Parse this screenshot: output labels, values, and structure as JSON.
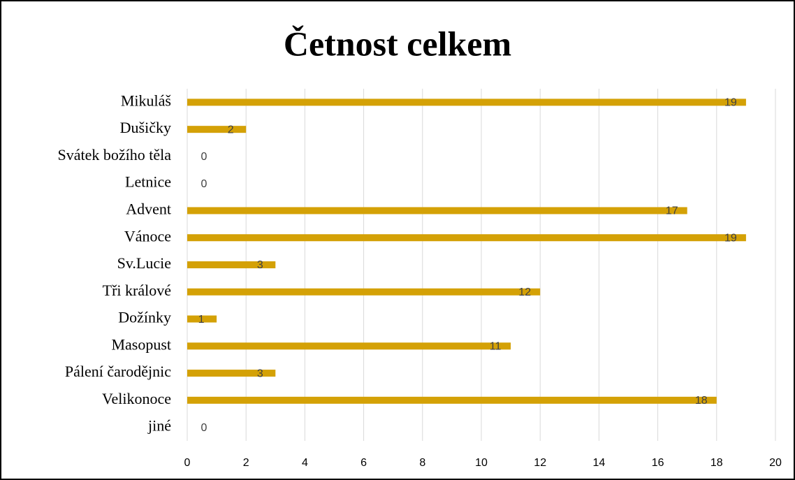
{
  "chart_data": {
    "type": "barh",
    "title": "Četnost celkem",
    "categories": [
      "Mikuláš",
      "Dušičky",
      "Svátek božího těla",
      "Letnice",
      "Advent",
      "Vánoce",
      "Sv.Lucie",
      "Tři králové",
      "Dožínky",
      "Masopust",
      "Pálení čarodějnic",
      "Velikonoce",
      "jiné"
    ],
    "values": [
      19,
      2,
      0,
      0,
      17,
      19,
      3,
      12,
      1,
      11,
      3,
      18,
      0
    ],
    "color": "#d4a106",
    "xlim": [
      0,
      20
    ],
    "xticks": [
      0,
      2,
      4,
      6,
      8,
      10,
      12,
      14,
      16,
      18,
      20
    ],
    "grid": true
  }
}
